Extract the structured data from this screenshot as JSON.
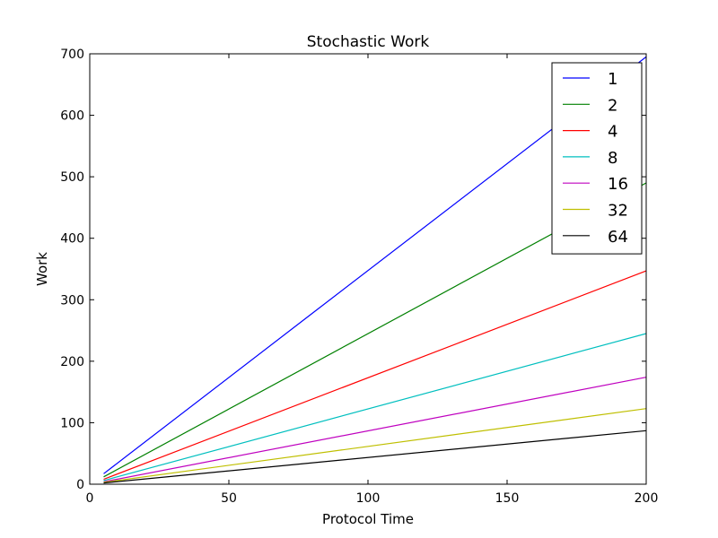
{
  "chart_data": {
    "type": "line",
    "title": "Stochastic Work",
    "xlabel": "Protocol Time",
    "ylabel": "Work",
    "xlim": [
      0,
      200
    ],
    "ylim": [
      0,
      700
    ],
    "xticks": [
      0,
      50,
      100,
      150,
      200
    ],
    "yticks": [
      0,
      100,
      200,
      300,
      400,
      500,
      600,
      700
    ],
    "grid": false,
    "legend_position": "top-right",
    "series": [
      {
        "name": "1",
        "color": "#0000ff",
        "x": [
          5,
          80,
          200
        ],
        "y": [
          17,
          278,
          695
        ]
      },
      {
        "name": "2",
        "color": "#008000",
        "x": [
          5,
          200
        ],
        "y": [
          12,
          490
        ]
      },
      {
        "name": "4",
        "color": "#ff0000",
        "x": [
          5,
          200
        ],
        "y": [
          8,
          347
        ]
      },
      {
        "name": "8",
        "color": "#00bfbf",
        "x": [
          5,
          200
        ],
        "y": [
          6,
          245
        ]
      },
      {
        "name": "16",
        "color": "#bf00bf",
        "x": [
          5,
          200
        ],
        "y": [
          4,
          174
        ]
      },
      {
        "name": "32",
        "color": "#bfbf00",
        "x": [
          5,
          200
        ],
        "y": [
          3,
          123
        ]
      },
      {
        "name": "64",
        "color": "#000000",
        "x": [
          5,
          200
        ],
        "y": [
          2,
          87
        ]
      }
    ]
  }
}
